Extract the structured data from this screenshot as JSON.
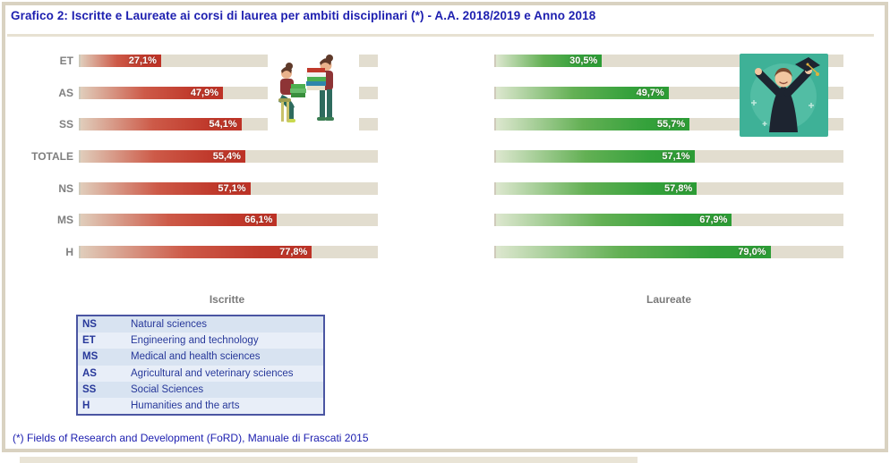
{
  "title": "Grafico 2: Iscritte e Laureate ai corsi di laurea per ambiti disciplinari (*) - A.A. 2018/2019 e Anno 2018",
  "chart_data": {
    "type": "bar",
    "orientation": "horizontal",
    "categories": [
      "ET",
      "AS",
      "SS",
      "TOTALE",
      "NS",
      "MS",
      "H"
    ],
    "series": [
      {
        "name": "Iscritte",
        "values": [
          27.1,
          47.9,
          54.1,
          55.4,
          57.1,
          66.1,
          77.8
        ],
        "labels": [
          "27,1%",
          "47,9%",
          "54,1%",
          "55,4%",
          "57,1%",
          "66,1%",
          "77,8%"
        ],
        "color": "#c03a2c"
      },
      {
        "name": "Laureate",
        "values": [
          30.5,
          49.7,
          55.7,
          57.1,
          57.8,
          67.9,
          79.0
        ],
        "labels": [
          "30,5%",
          "49,7%",
          "55,7%",
          "57,1%",
          "57,8%",
          "67,9%",
          "79,0%"
        ],
        "color": "#2c9c35"
      }
    ],
    "xlim": [
      0,
      100
    ],
    "track_color": "#e2ddcf",
    "grid": false,
    "value_label_position": "inside-end"
  },
  "legend": {
    "rows": [
      {
        "code": "NS",
        "label": "Natural sciences"
      },
      {
        "code": "ET",
        "label": "Engineering and technology"
      },
      {
        "code": "MS",
        "label": "Medical and health sciences"
      },
      {
        "code": "AS",
        "label": "Agricultural and veterinary sciences"
      },
      {
        "code": "SS",
        "label": "Social Sciences"
      },
      {
        "code": "H",
        "label": "Humanities and the arts"
      }
    ]
  },
  "footnote": "(*) Fields of Research and Development (FoRD), Manuale di Frascati 2015",
  "colors": {
    "title_blue": "#1e20b0",
    "bar_red": "#c03a2c",
    "bar_green": "#2c9c35",
    "track_beige": "#e2ddcf",
    "legend_navy": "#27389a",
    "frame_tan": "#d9d2c1"
  },
  "illustrations": {
    "left": "students-with-books-illustration",
    "right": "graduate-woman-illustration"
  }
}
